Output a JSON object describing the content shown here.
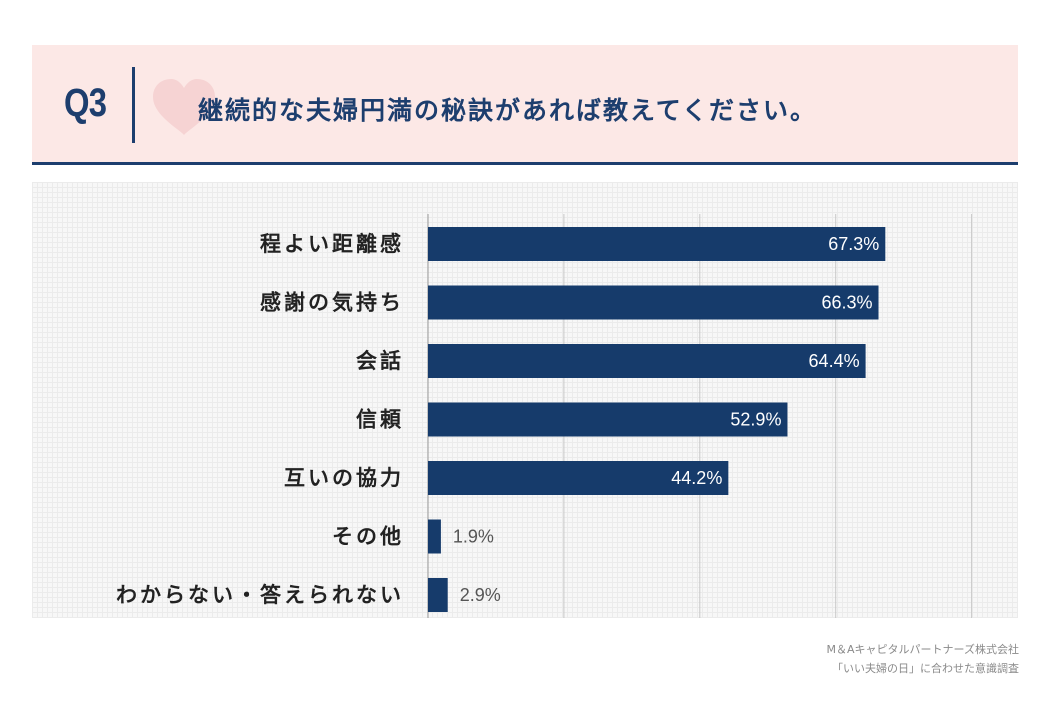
{
  "header": {
    "q_label": "Q3",
    "question": "継続的な夫婦円満の秘訣があれば教えてください。"
  },
  "colors": {
    "bar": "#163b6b",
    "header_bg": "#fce8e6",
    "heart": "#f6d3d3",
    "label_inside": "#ffffff",
    "label_outside": "#555555"
  },
  "icons": {
    "header_heart": "heart-icon"
  },
  "chart_data": {
    "type": "bar",
    "orientation": "horizontal",
    "categories": [
      "程よい距離感",
      "感謝の気持ち",
      "会話",
      "信頼",
      "互いの協力",
      "その他",
      "わからない・答えられない"
    ],
    "values": [
      67.3,
      66.3,
      64.4,
      52.9,
      44.2,
      1.9,
      2.9
    ],
    "value_labels": [
      "67.3%",
      "66.3%",
      "64.4%",
      "52.9%",
      "44.2%",
      "1.9%",
      "2.9%"
    ],
    "xlim": [
      0,
      80
    ],
    "grid_step": 20,
    "grid": true,
    "title": "",
    "xlabel": "",
    "ylabel": ""
  },
  "footer": {
    "line1": "M＆Aキャピタルパートナーズ株式会社",
    "line2": "「いい夫婦の日」に合わせた意識調査"
  }
}
